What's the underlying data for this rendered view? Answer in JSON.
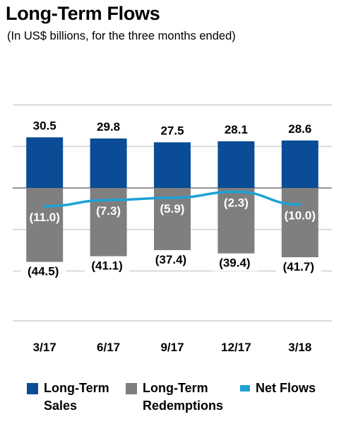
{
  "header": {
    "title": "Long-Term Flows",
    "subtitle": "(In US$ billions, for the three months ended)"
  },
  "colors": {
    "sales": "#0A4C96",
    "redemptions": "#7F7F7F",
    "net_flows": "#1DA1D6",
    "grid": "#C8C8C8",
    "zero_line": "#555555"
  },
  "chart_data": {
    "type": "bar",
    "title": "Long-Term Flows",
    "subtitle": "(In US$ billions, for the three months ended)",
    "categories": [
      "3/17",
      "6/17",
      "9/17",
      "12/17",
      "3/18"
    ],
    "series": [
      {
        "name": "Long-Term Sales",
        "kind": "bar",
        "values": [
          30.5,
          29.8,
          27.5,
          28.1,
          28.6
        ],
        "labels": [
          "30.5",
          "29.8",
          "27.5",
          "28.1",
          "28.6"
        ]
      },
      {
        "name": "Long-Term Redemptions",
        "kind": "bar",
        "values": [
          -44.5,
          -41.1,
          -37.4,
          -39.4,
          -41.7
        ],
        "labels": [
          "(44.5)",
          "(41.1)",
          "(37.4)",
          "(39.4)",
          "(41.7)"
        ]
      },
      {
        "name": "Net Flows",
        "kind": "line",
        "values": [
          -11.0,
          -7.3,
          -5.9,
          -2.3,
          -10.0
        ],
        "labels": [
          "(11.0)",
          "(7.3)",
          "(5.9)",
          "(2.3)",
          "(10.0)"
        ]
      }
    ],
    "ylim": [
      -80,
      50
    ],
    "gridlines": [
      50,
      25,
      0,
      -25,
      -50,
      -80
    ],
    "grid": true,
    "legend": "bottom"
  },
  "legend": {
    "items": [
      {
        "label": "Long-Term\nSales"
      },
      {
        "label": "Long-Term\nRedemptions"
      },
      {
        "label": "Net Flows"
      }
    ]
  }
}
